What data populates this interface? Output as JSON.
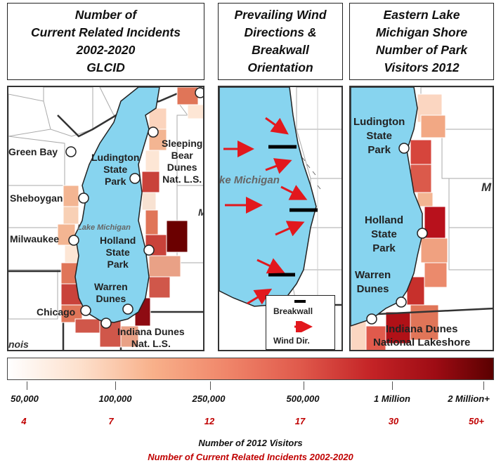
{
  "titles": {
    "left": "Number of\nCurrent Related Incidents\n2002-2020\nGLCID",
    "middle": "Prevailing Wind\nDirections &\nBreakwall\nOrientation",
    "right": "Eastern Lake\nMichigan Shore\nNumber of Park\nVisitors 2012"
  },
  "left_map": {
    "labels": {
      "green_bay": "Green Bay",
      "sheboygan": "Sheboygan",
      "milwaukee": "Milwaukee",
      "chicago": "Chicago",
      "lake": "Lake Michigan",
      "ludington": "Ludington\nState\nPark",
      "sleeping_bear": "Sleeping\nBear\nDunes\nNat. L.S.",
      "holland": "Holland\nState\nPark",
      "warren": "Warren\nDunes",
      "indiana": "Indiana Dunes\nNat. L.S.",
      "illinois": "nois",
      "m": "M"
    }
  },
  "middle_map": {
    "labels": {
      "lake": "ke Michigan"
    },
    "legend": {
      "breakwall": "Breakwall",
      "wind": "Wind Dir."
    }
  },
  "right_map": {
    "labels": {
      "ludington": "Ludington\nState\nPark",
      "holland": "Holland\nState\nPark",
      "warren": "Warren\nDunes",
      "indiana": "Indiana Dunes\nNational Lakeshore",
      "m": "M"
    }
  },
  "scale": {
    "visitors": [
      "50,000",
      "100,000",
      "250,000",
      "500,000",
      "1 Million",
      "2 Million+"
    ],
    "incidents": [
      "4",
      "7",
      "12",
      "17",
      "30",
      "50+"
    ],
    "legend_visitors": "Number of 2012 Visitors",
    "legend_incidents": "Number of Current Related Incidents 2002-2020"
  },
  "colors": {
    "lake": "#87d4ef",
    "incident_red": "#c00000"
  }
}
